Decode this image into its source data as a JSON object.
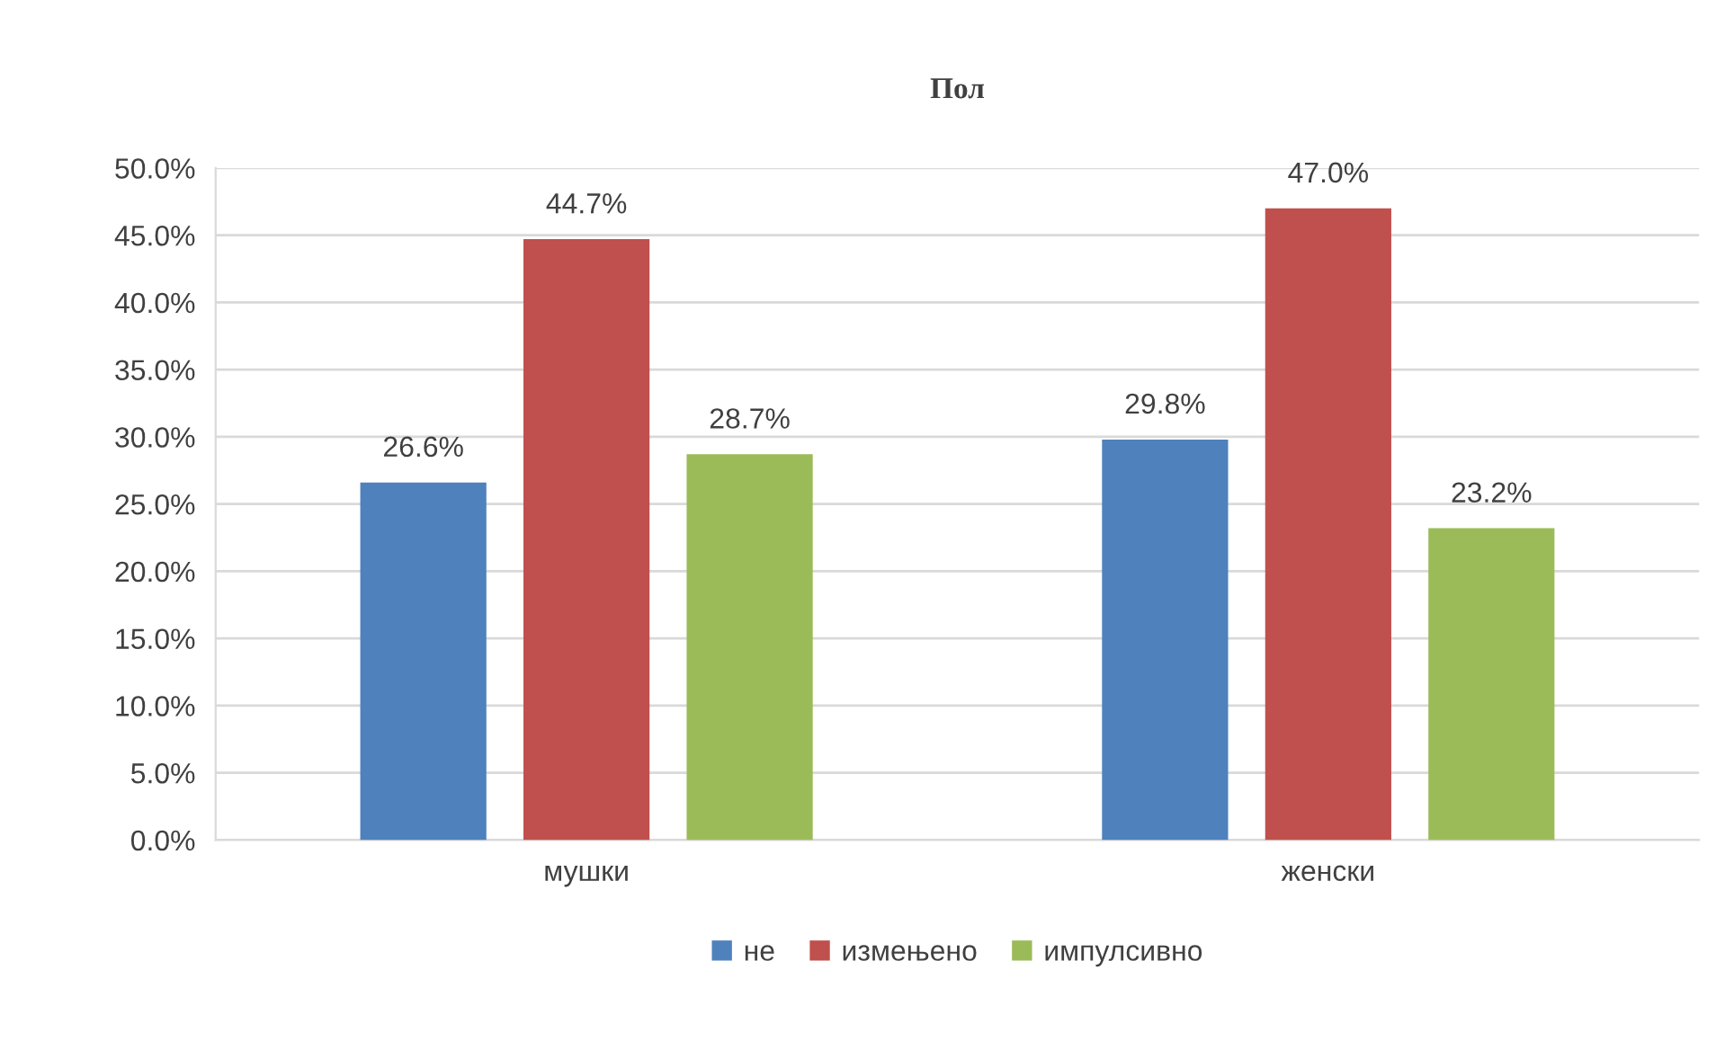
{
  "chart_data": {
    "type": "bar",
    "title": "Пол",
    "categories": [
      "мушки",
      "женски"
    ],
    "series": [
      {
        "name": "не",
        "color": "#4f81bd",
        "values": [
          26.6,
          29.8
        ],
        "value_labels": [
          "26.6%",
          "29.8%"
        ]
      },
      {
        "name": "измењено",
        "color": "#c0504d",
        "values": [
          44.7,
          47.0
        ],
        "value_labels": [
          "44.7%",
          "47.0%"
        ]
      },
      {
        "name": "импулсивно",
        "color": "#9bbb59",
        "values": [
          28.7,
          23.2
        ],
        "value_labels": [
          "28.7%",
          "23.2%"
        ]
      }
    ],
    "ylim": [
      0,
      50
    ],
    "yticks": [
      {
        "value": 0,
        "label": "0.0%"
      },
      {
        "value": 5,
        "label": "5.0%"
      },
      {
        "value": 10,
        "label": "10.0%"
      },
      {
        "value": 15,
        "label": "15.0%"
      },
      {
        "value": 20,
        "label": "20.0%"
      },
      {
        "value": 25,
        "label": "25.0%"
      },
      {
        "value": 30,
        "label": "30.0%"
      },
      {
        "value": 35,
        "label": "35.0%"
      },
      {
        "value": 40,
        "label": "40.0%"
      },
      {
        "value": 45,
        "label": "45.0%"
      },
      {
        "value": 50,
        "label": "50.0%"
      }
    ],
    "grid": "y",
    "legend": "bottom"
  }
}
